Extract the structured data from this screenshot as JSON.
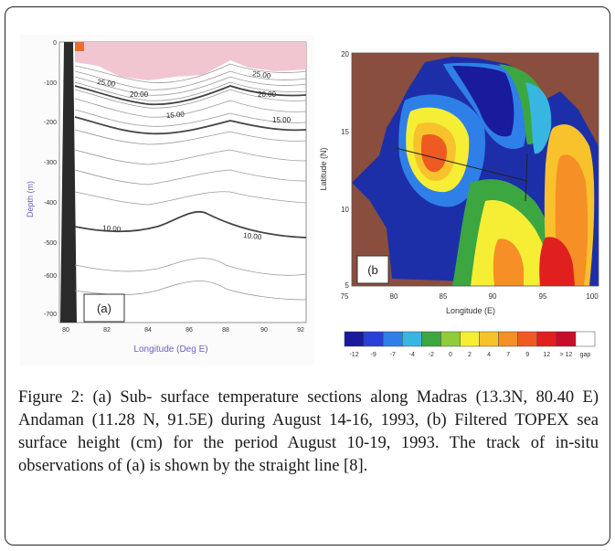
{
  "panel_a": {
    "label": "(a)",
    "y_axis_label": "Depth (m)",
    "y_ticks": [
      "0",
      "-100",
      "-200",
      "-300",
      "-400",
      "-500",
      "-600",
      "-700"
    ],
    "x_axis_label": "Longitude (Deg E)",
    "x_ticks": [
      "80",
      "82",
      "84",
      "86",
      "88",
      "90",
      "92"
    ],
    "contour_labels": [
      "25.00",
      "20.00",
      "15.00",
      "10.00",
      "25.00",
      "20.00",
      "15.00",
      "10.00"
    ]
  },
  "panel_b": {
    "label": "(b",
    "y_axis_label": "Latitude (N)",
    "y_ticks": [
      "20",
      "15",
      "10",
      "5"
    ],
    "x_axis_label": "Longitude (E)",
    "x_ticks": [
      "75",
      "80",
      "85",
      "90",
      "95",
      "100"
    ],
    "colorbar_labels": [
      "-12",
      "-9",
      "-7",
      "-4",
      "-2",
      "0",
      "2",
      "4",
      "7",
      "9",
      "12",
      "> 12",
      "gap"
    ],
    "colorbar_colors": [
      "#1a1a9c",
      "#2a3fd8",
      "#2f7fe8",
      "#36b6e0",
      "#3ca641",
      "#8fcc3a",
      "#f5ee35",
      "#f8c22c",
      "#f58f26",
      "#ee5a22",
      "#e01f1f",
      "#c80d2b",
      "#ffffff"
    ]
  },
  "caption": "Figure 2: (a) Sub- surface temperature sections along Madras (13.3N, 80.40 E) Andaman (11.28 N, 91.5E) during August 14-16, 1993, (b) Filtered TOPEX sea surface height (cm) for the period August 10-19, 1993. The track of in-situ observations of (a) is shown by the straight line [8]."
}
